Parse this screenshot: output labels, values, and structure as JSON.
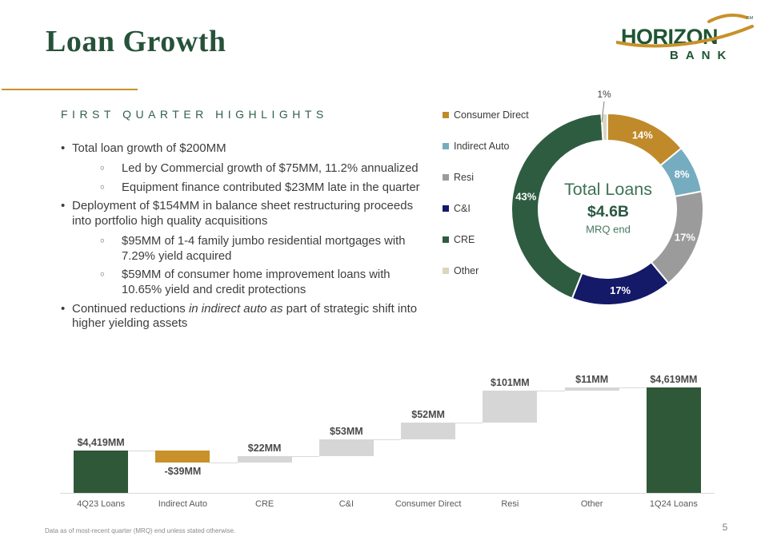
{
  "slide": {
    "title": "Loan Growth",
    "page_number": "5",
    "footnote": "Data as of most-recent quarter (MRQ)  end unless stated otherwise."
  },
  "logo": {
    "line1": "HORIZON",
    "line2": "BANK",
    "trademark": "SM",
    "green": "#1F5533",
    "gold": "#C8912A"
  },
  "highlights": {
    "heading": "FIRST QUARTER HIGHLIGHTS",
    "bullet_markers": {
      "level1": "•",
      "level2": "○"
    },
    "bullets": [
      {
        "level": 1,
        "text": "Total loan growth of $200MM"
      },
      {
        "level": 2,
        "text": "Led by Commercial growth of $75MM, 11.2% annualized"
      },
      {
        "level": 2,
        "text": "Equipment finance contributed $23MM late in the quarter"
      },
      {
        "level": 1,
        "text": "Deployment of $154MM in balance sheet restructuring proceeds into portfolio high quality acquisitions"
      },
      {
        "level": 2,
        "text": "$95MM of 1-4 family jumbo residential mortgages with 7.29% yield acquired"
      },
      {
        "level": 2,
        "text": "$59MM of consumer home improvement loans with 10.65% yield and credit protections"
      },
      {
        "level": 1,
        "segments": [
          {
            "text": "Continued reductions "
          },
          {
            "text": "in indirect auto as",
            "italic": true
          },
          {
            "text": " part of strategic shift into higher yielding assets"
          }
        ]
      }
    ]
  },
  "chart_data": [
    {
      "type": "pie",
      "subtype": "donut",
      "center_title": "Total Loans",
      "center_value": "$4.6B",
      "center_caption": "MRQ end",
      "legend_position": "left",
      "start_angle_deg": 0,
      "direction": "clockwise",
      "slices": [
        {
          "label": "Consumer Direct",
          "value": 14,
          "display": "14%",
          "color": "#C08A2B"
        },
        {
          "label": "Indirect Auto",
          "value": 8,
          "display": "8%",
          "color": "#76ACBF"
        },
        {
          "label": "Resi",
          "value": 17,
          "display": "17%",
          "color": "#9B9B9B"
        },
        {
          "label": "C&I",
          "value": 17,
          "display": "17%",
          "color": "#141968"
        },
        {
          "label": "CRE",
          "value": 43,
          "display": "43%",
          "color": "#2E5C41"
        },
        {
          "label": "Other",
          "value": 1,
          "display": "1%",
          "color": "#DBD6C0",
          "label_outside": true
        }
      ],
      "center_text_colors": {
        "title": "#3E7355",
        "value": "#2B5943",
        "caption": "#47795D"
      }
    },
    {
      "type": "bar",
      "subtype": "waterfall",
      "categories": [
        "4Q23 Loans",
        "Indirect Auto",
        "CRE",
        "C&I",
        "Consumer Direct",
        "Resi",
        "Other",
        "1Q24 Loans"
      ],
      "values": [
        4419,
        -39,
        22,
        53,
        52,
        101,
        11,
        4619
      ],
      "labels": [
        "$4,419MM",
        "-$39MM",
        "$22MM",
        "$53MM",
        "$52MM",
        "$101MM",
        "$11MM",
        "$4,619MM"
      ],
      "roles": [
        "total",
        "delta",
        "delta",
        "delta",
        "delta",
        "delta",
        "delta",
        "total"
      ],
      "unit": "MM",
      "axis_min": 4285,
      "colors": {
        "total": "#2F5839",
        "negative": "#C8912B",
        "positive": "#D6D6D6",
        "connector": "#D9D9D9"
      },
      "grid": false,
      "legend_position": "none"
    }
  ],
  "theme": {
    "title_green": "#26523A",
    "heading_green": "#2F6249",
    "body_text": "#3D3D3D",
    "accent_gold": "#C8912A",
    "footnote_gray": "#8A8A8A"
  }
}
